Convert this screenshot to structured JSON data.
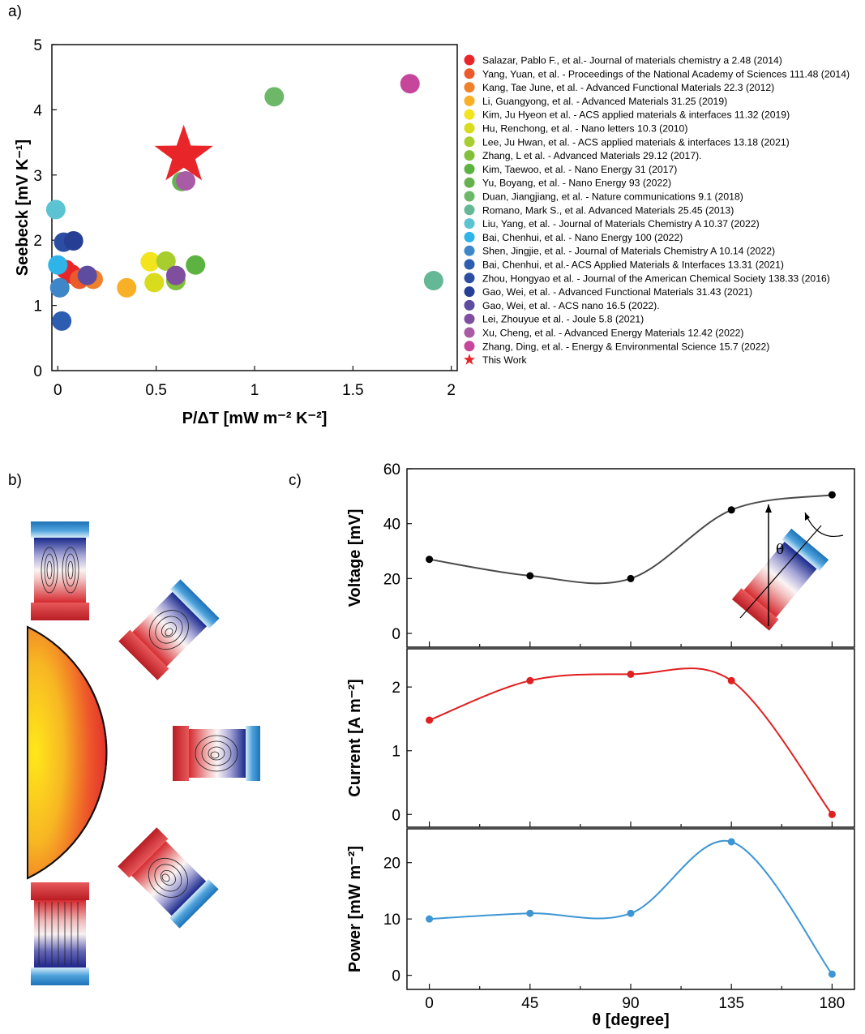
{
  "panels": {
    "a": "a)",
    "b": "b)",
    "c": "c)"
  },
  "chart_data": [
    {
      "type": "scatter",
      "panel": "a)",
      "xlabel": "P/ΔT  [mW m⁻² K⁻²]",
      "ylabel": "Seebeck [mV K⁻¹]",
      "xlim": [
        -0.03,
        2.03
      ],
      "ylim": [
        0,
        5
      ],
      "xticks": [
        "0",
        "0.5",
        "1",
        "1.5",
        "2"
      ],
      "xtick_values": [
        0,
        0.5,
        1,
        1.5,
        2
      ],
      "yticks": [
        "0",
        "1",
        "2",
        "3",
        "4",
        "5"
      ],
      "ytick_values": [
        0,
        1,
        2,
        3,
        4,
        5
      ],
      "legend_position": "right",
      "series": [
        {
          "name": "Salazar, Pablo F., et al.- Journal of materials chemistry a 2.48 (2014)",
          "color": "#e8262a",
          "points": [
            [
              0.04,
              1.55
            ],
            [
              0.07,
              1.48
            ]
          ]
        },
        {
          "name": "Yang, Yuan, et al. - Proceedings of the National Academy of Sciences 111.48 (2014)",
          "color": "#ec5a2c",
          "points": [
            [
              0.11,
              1.4
            ]
          ]
        },
        {
          "name": "Kang, Tae June, et al. - Advanced Functional Materials 22.3 (2012)",
          "color": "#f0802a",
          "points": [
            [
              0.18,
              1.4
            ]
          ]
        },
        {
          "name": "Li, Guangyong, et al. - Advanced Materials 31.25 (2019)",
          "color": "#f8b026",
          "points": [
            [
              0.35,
              1.27
            ]
          ]
        },
        {
          "name": "Kim, Ju Hyeon et al. - ACS applied materials & interfaces 11.32 (2019)",
          "color": "#f3e51d",
          "points": [
            [
              0.47,
              1.67
            ]
          ]
        },
        {
          "name": "Hu, Renchong, et al. - Nano letters 10.3 (2010)",
          "color": "#d9dc1d",
          "points": [
            [
              0.49,
              1.35
            ]
          ]
        },
        {
          "name": "Lee, Ju Hwan, et al. - ACS applied materials & interfaces 13.18 (2021)",
          "color": "#a8cd2e",
          "points": [
            [
              0.55,
              1.68
            ]
          ]
        },
        {
          "name": "Zhang, L et al. - Advanced Materials 29.12 (2017).",
          "color": "#82bf3a",
          "points": [
            [
              0.6,
              1.38
            ]
          ]
        },
        {
          "name": "Kim, Taewoo, et al. - Nano Energy 31 (2017)",
          "color": "#5db342",
          "points": [
            [
              0.7,
              1.62
            ]
          ]
        },
        {
          "name": "Yu, Boyang, et al. - Nano Energy 93 (2022)",
          "color": "#66b14e",
          "points": [
            [
              0.63,
              2.9
            ]
          ]
        },
        {
          "name": "Duan, Jiangjiang, et al. - Nature communications 9.1 (2018)",
          "color": "#6cb868",
          "points": [
            [
              1.1,
              4.2
            ]
          ]
        },
        {
          "name": "Romano, Mark S., et al. Advanced Materials 25.45 (2013)",
          "color": "#64b896",
          "points": [
            [
              1.91,
              1.38
            ]
          ]
        },
        {
          "name": "Liu, Yang, et al. - Journal of Materials Chemistry A 10.37 (2022)",
          "color": "#5bc3d1",
          "points": [
            [
              -0.01,
              2.47
            ]
          ]
        },
        {
          "name": "Bai, Chenhui, et al. - Nano Energy 100 (2022)",
          "color": "#2fb4ea",
          "points": [
            [
              0.0,
              1.62
            ]
          ]
        },
        {
          "name": "Shen, Jingjie, et al. - Journal of Materials Chemistry A 10.14 (2022)",
          "color": "#3d86c8",
          "points": [
            [
              0.01,
              1.27
            ]
          ]
        },
        {
          "name": "Bai, Chenhui, et al.- ACS Applied Materials & Interfaces 13.31 (2021)",
          "color": "#2d5db1",
          "points": [
            [
              0.02,
              0.76
            ]
          ]
        },
        {
          "name": "Zhou, Hongyao et al. - Journal of the American Chemical Society 138.33 (2016)",
          "color": "#2b4ea3",
          "points": [
            [
              0.03,
              1.97
            ]
          ]
        },
        {
          "name": "Gao, Wei, et al. - Advanced Functional Materials 31.43 (2021)",
          "color": "#263f95",
          "points": [
            [
              0.08,
              1.99
            ]
          ]
        },
        {
          "name": "Gao, Wei, et al. - ACS nano 16.5 (2022).",
          "color": "#5d4ca0",
          "points": [
            [
              0.15,
              1.46
            ]
          ]
        },
        {
          "name": "Lei, Zhouyue et al. - Joule 5.8 (2021)",
          "color": "#7f4e9f",
          "points": [
            [
              0.6,
              1.46
            ]
          ]
        },
        {
          "name": "Xu, Cheng, et al. - Advanced Energy Materials 12.42 (2022)",
          "color": "#a95ba6",
          "points": [
            [
              0.65,
              2.91
            ]
          ]
        },
        {
          "name": "Zhang, Ding, et al. - Energy & Environmental Science 15.7 (2022)",
          "color": "#c5469a",
          "points": [
            [
              1.79,
              4.4
            ]
          ]
        },
        {
          "name": "This Work",
          "color": "#e8262a",
          "marker": "star",
          "points": [
            [
              0.64,
              3.3
            ]
          ]
        }
      ]
    },
    {
      "type": "line",
      "panel": "c)",
      "xlabel": "θ [degree]",
      "x": [
        0,
        45,
        90,
        135,
        180
      ],
      "xticks": [
        "0",
        "45",
        "90",
        "135",
        "180"
      ],
      "xlim": [
        -10,
        190
      ],
      "series": [
        {
          "ylabel": "Voltage [mV]",
          "color": "#4a4a4a",
          "marker_color": "#000000",
          "values": [
            27,
            21,
            20,
            45,
            50.5
          ],
          "ylim": [
            -5,
            60
          ],
          "yticks": [
            "0",
            "20",
            "40",
            "60"
          ],
          "ytick_values": [
            0,
            20,
            40,
            60
          ]
        },
        {
          "ylabel": "Current [A m⁻²]",
          "color": "#e02020",
          "marker_color": "#e02020",
          "values": [
            1.48,
            2.1,
            2.2,
            2.1,
            0
          ],
          "ylim": [
            -0.2,
            2.6
          ],
          "yticks": [
            "0",
            "1",
            "2"
          ],
          "ytick_values": [
            0,
            1,
            2
          ]
        },
        {
          "ylabel": "Power [mW m⁻²]",
          "color": "#3d96d3",
          "marker_color": "#3d96d3",
          "values": [
            10,
            11,
            11,
            23.7,
            0.2
          ],
          "ylim": [
            -2.5,
            26
          ],
          "yticks": [
            "0",
            "10",
            "20"
          ],
          "ytick_values": [
            0,
            10,
            20
          ]
        }
      ],
      "inset_symbol": "θ"
    }
  ]
}
